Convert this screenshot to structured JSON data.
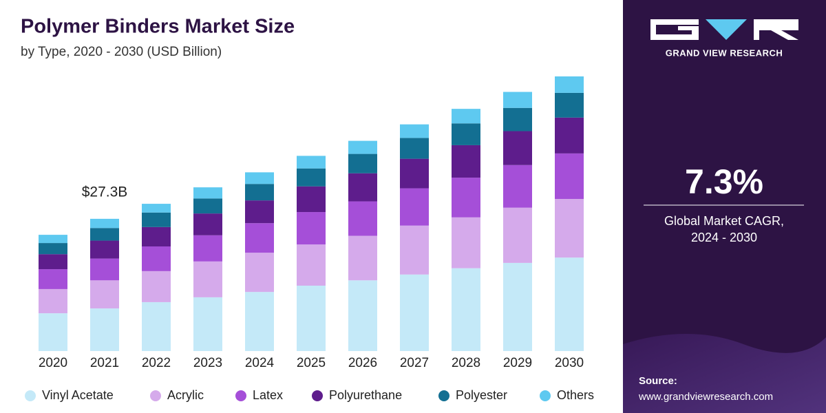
{
  "chart_data": {
    "type": "stacked_bar",
    "title": "Polymer Binders Market Size",
    "subtitle": "by Type, 2020 - 2030 (USD Billion)",
    "annotation": "$27.3B",
    "categories": [
      "2020",
      "2021",
      "2022",
      "2023",
      "2024",
      "2025",
      "2026",
      "2027",
      "2028",
      "2029",
      "2030"
    ],
    "series": [
      {
        "name": "Vinyl Acetate",
        "color": "#c4e9f8",
        "values": [
          7.8,
          8.8,
          10.1,
          11.1,
          12.2,
          13.5,
          14.6,
          15.8,
          17.1,
          18.2,
          19.3
        ]
      },
      {
        "name": "Acrylic",
        "color": "#d5aaeb",
        "values": [
          5.0,
          5.8,
          6.4,
          7.4,
          8.1,
          8.5,
          9.2,
          10.1,
          10.5,
          11.4,
          12.1
        ]
      },
      {
        "name": "Latex",
        "color": "#a54fd8",
        "values": [
          4.1,
          4.5,
          5.1,
          5.4,
          6.1,
          6.7,
          7.1,
          7.7,
          8.2,
          8.8,
          9.4
        ]
      },
      {
        "name": "Polyurethane",
        "color": "#5e1d8c",
        "values": [
          3.1,
          3.7,
          4.0,
          4.5,
          4.7,
          5.3,
          5.8,
          6.1,
          6.7,
          7.0,
          7.4
        ]
      },
      {
        "name": "Polyester",
        "color": "#136f92",
        "values": [
          2.3,
          2.6,
          3.0,
          3.1,
          3.4,
          3.7,
          4.0,
          4.3,
          4.5,
          4.8,
          5.1
        ]
      },
      {
        "name": "Others",
        "color": "#5ec9f0",
        "values": [
          1.7,
          1.9,
          1.8,
          2.3,
          2.4,
          2.6,
          2.7,
          2.8,
          3.0,
          3.3,
          3.4
        ]
      }
    ]
  },
  "side_panel": {
    "brand": "GRAND VIEW RESEARCH",
    "cagr": "7.3%",
    "cagr_label": [
      "Global Market CAGR,",
      "2024 - 2030"
    ],
    "source_label": "Source:",
    "source_url": "www.grandviewresearch.com"
  }
}
